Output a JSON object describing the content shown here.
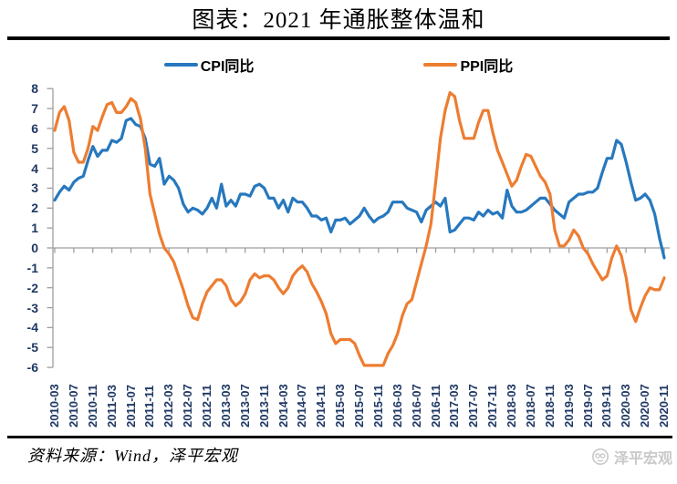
{
  "title": "图表：2021 年通胀整体温和",
  "source_note": "资料来源：Wind，泽平宏观",
  "watermark_text": "泽平宏观",
  "colors": {
    "cpi_line": "#2778BE",
    "ppi_line": "#ED7D31",
    "axis": "#9e9e9e",
    "tick_label": "#1F3864",
    "rule": "#000000",
    "watermark": "#c8c8c8"
  },
  "legend": {
    "items": [
      {
        "label": "CPI同比",
        "color": "#2778BE"
      },
      {
        "label": "PPI同比",
        "color": "#ED7D31"
      }
    ]
  },
  "chart_data": {
    "type": "line",
    "title": "图表：2021 年通胀整体温和",
    "frequency": "monthly",
    "start_month": "2010-03",
    "end_month": "2020-11",
    "ylim": [
      -6,
      8
    ],
    "y_ticks": [
      8,
      7,
      6,
      5,
      4,
      3,
      2,
      1,
      0,
      -1,
      -2,
      -3,
      -4,
      -5,
      -6
    ],
    "grid": false,
    "legend_position": "top",
    "x_tick_labels": [
      "2010-03",
      "2010-07",
      "2010-11",
      "2011-03",
      "2011-07",
      "2011-11",
      "2012-03",
      "2012-07",
      "2012-11",
      "2013-03",
      "2013-07",
      "2013-11",
      "2014-03",
      "2014-07",
      "2014-11",
      "2015-03",
      "2015-07",
      "2015-11",
      "2016-03",
      "2016-07",
      "2016-11",
      "2017-03",
      "2017-07",
      "2017-11",
      "2018-03",
      "2018-07",
      "2018-11",
      "2019-03",
      "2019-07",
      "2019-11",
      "2020-03",
      "2020-07",
      "2020-11"
    ],
    "series": [
      {
        "name": "CPI同比",
        "color": "#2778BE",
        "values": [
          2.4,
          2.8,
          3.1,
          2.9,
          3.3,
          3.5,
          3.6,
          4.4,
          5.1,
          4.6,
          4.9,
          4.9,
          5.4,
          5.3,
          5.5,
          6.4,
          6.5,
          6.2,
          6.1,
          5.5,
          4.2,
          4.1,
          4.5,
          3.2,
          3.6,
          3.4,
          3.0,
          2.2,
          1.8,
          2.0,
          1.9,
          1.7,
          2.0,
          2.5,
          2.0,
          3.2,
          2.1,
          2.4,
          2.1,
          2.7,
          2.7,
          2.6,
          3.1,
          3.2,
          3.0,
          2.5,
          2.5,
          2.0,
          2.4,
          1.8,
          2.5,
          2.3,
          2.3,
          2.0,
          1.6,
          1.6,
          1.4,
          1.5,
          0.8,
          1.4,
          1.4,
          1.5,
          1.2,
          1.4,
          1.6,
          2.0,
          1.6,
          1.3,
          1.5,
          1.6,
          1.8,
          2.3,
          2.3,
          2.3,
          2.0,
          1.9,
          1.8,
          1.3,
          1.9,
          2.1,
          2.3,
          2.1,
          2.5,
          0.8,
          0.9,
          1.2,
          1.5,
          1.5,
          1.4,
          1.8,
          1.6,
          1.9,
          1.7,
          1.8,
          1.5,
          2.9,
          2.1,
          1.8,
          1.8,
          1.9,
          2.1,
          2.3,
          2.5,
          2.5,
          2.2,
          1.9,
          1.7,
          1.5,
          2.3,
          2.5,
          2.7,
          2.7,
          2.8,
          2.8,
          3.0,
          3.8,
          4.5,
          4.5,
          5.4,
          5.2,
          4.3,
          3.3,
          2.4,
          2.5,
          2.7,
          2.4,
          1.7,
          0.5,
          -0.5
        ]
      },
      {
        "name": "PPI同比",
        "color": "#ED7D31",
        "values": [
          5.9,
          6.8,
          7.1,
          6.4,
          4.8,
          4.3,
          4.3,
          5.0,
          6.1,
          5.9,
          6.6,
          7.2,
          7.3,
          6.8,
          6.8,
          7.1,
          7.5,
          7.3,
          6.5,
          5.0,
          2.7,
          1.7,
          0.7,
          0.0,
          -0.3,
          -0.7,
          -1.4,
          -2.1,
          -2.9,
          -3.5,
          -3.6,
          -2.8,
          -2.2,
          -1.9,
          -1.6,
          -1.6,
          -1.9,
          -2.6,
          -2.9,
          -2.7,
          -2.3,
          -1.6,
          -1.3,
          -1.5,
          -1.4,
          -1.4,
          -1.6,
          -2.0,
          -2.3,
          -2.0,
          -1.4,
          -1.1,
          -0.9,
          -1.2,
          -1.8,
          -2.2,
          -2.7,
          -3.3,
          -4.3,
          -4.8,
          -4.6,
          -4.6,
          -4.6,
          -4.8,
          -5.4,
          -5.9,
          -5.9,
          -5.9,
          -5.9,
          -5.9,
          -5.3,
          -4.9,
          -4.3,
          -3.4,
          -2.8,
          -2.6,
          -1.7,
          -0.8,
          0.1,
          1.2,
          3.3,
          5.5,
          6.9,
          7.8,
          7.6,
          6.4,
          5.5,
          5.5,
          5.5,
          6.3,
          6.9,
          6.9,
          5.8,
          4.9,
          4.3,
          3.7,
          3.1,
          3.4,
          4.1,
          4.7,
          4.6,
          4.1,
          3.6,
          3.3,
          2.7,
          0.9,
          0.1,
          0.1,
          0.4,
          0.9,
          0.6,
          0.0,
          -0.3,
          -0.8,
          -1.2,
          -1.6,
          -1.4,
          -0.5,
          0.1,
          -0.4,
          -1.5,
          -3.1,
          -3.7,
          -3.0,
          -2.4,
          -2.0,
          -2.1,
          -2.1,
          -1.5
        ]
      }
    ]
  }
}
